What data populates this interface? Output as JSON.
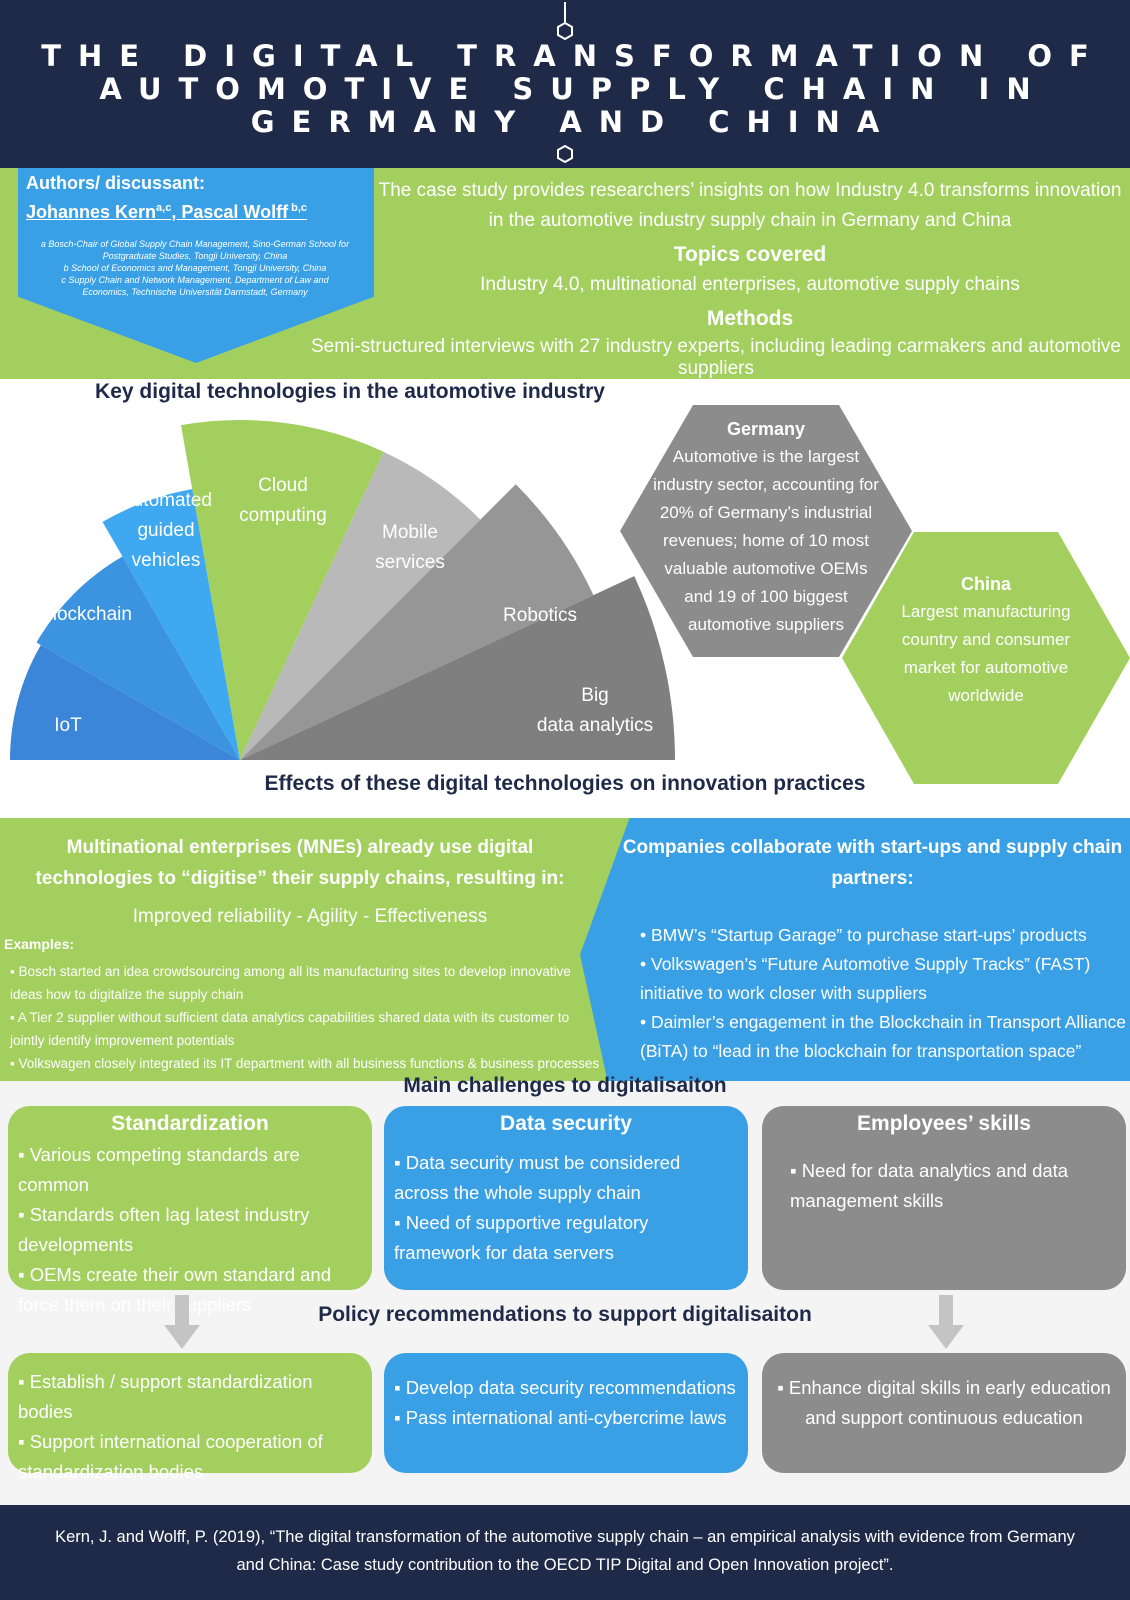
{
  "header": {
    "title": "THE DIGITAL TRANSFORMATION OF AUTOMOTIVE SUPPLY CHAIN IN GERMANY AND CHINA"
  },
  "intro": {
    "authors_label": "Authors/ discussant:",
    "author_1": "Johannes Kern",
    "author_1_sup": "a,c",
    "author_sep": ", ",
    "author_2": "Pascal Wolff",
    "author_2_sup": " b,c",
    "affiliation_a": "a Bosch-Chair of Global Supply Chain Management, Sino-German School for Postgraduate Studies, Tongji University, China",
    "affiliation_b": "b School of Economics and Management, Tongji University, China",
    "affiliation_c": "c Supply Chain and Network Management, Department of Law and Economics, Technische Universität Darmstadt, Germany",
    "summary": "The case study provides researchers’ insights on how Industry 4.0 transforms innovation in the automotive industry supply chain in Germany and China",
    "topics_heading": "Topics covered",
    "topics_text": "Industry 4.0, multinational enterprises, automotive supply chains",
    "methods_heading": "Methods",
    "methods_text": "Semi-structured interviews with 27 industry experts, including leading carmakers and automotive suppliers"
  },
  "technologies": {
    "heading": "Key digital technologies in the automotive industry",
    "segments": [
      "IoT",
      "Blockchain",
      "Automated guided vehicles",
      "Cloud computing",
      "Mobile services",
      "Robotics",
      "Big data analytics"
    ],
    "colors": [
      "#3b86d8",
      "#3c94e0",
      "#3ea8f0",
      "#a3cf5f",
      "#b9b9b9",
      "#969696",
      "#7f7f7f"
    ]
  },
  "germany": {
    "title": "Germany",
    "text": "Automotive is the largest industry sector, accounting for 20% of Germany’s industrial revenues; home of 10 most valuable automotive OEMs and 19 of 100 biggest automotive suppliers"
  },
  "china": {
    "title": "China",
    "text": "Largest manufacturing country and consumer market for automotive worldwide"
  },
  "effects": {
    "heading": "Effects of these digital technologies on innovation practices",
    "mne_heading": "Multinational enterprises (MNEs) already use digital technologies to “digitise” their supply chains, resulting in:",
    "mne_results": "Improved reliability  - Agility  - Effectiveness",
    "examples_label": "Examples:",
    "examples": [
      "▪ Bosch started an idea crowdsourcing among all its manufacturing sites to develop innovative ideas how to digitalize the supply chain",
      "▪ A Tier 2 supplier without sufficient data analytics capabilities shared data with its customer to jointly identify improvement potentials",
      "▪ Volkswagen closely integrated its IT department with all business functions & business processes"
    ],
    "collab_heading": "Companies collaborate with start-ups and supply chain partners:",
    "collab_items": [
      "•  BMW’s “Startup Garage” to purchase start-ups’ products",
      "•  Volkswagen’s “Future Automotive Supply Tracks” (FAST) initiative to work closer with suppliers",
      "•  Daimler’s engagement in the Blockchain in Transport Alliance (BiTA) to “lead in the blockchain for transportation space”"
    ]
  },
  "challenges": {
    "heading": "Main challenges to digitalisaiton",
    "standardization": {
      "title": "Standardization",
      "items": [
        "▪ Various competing standards are common",
        "▪ Standards often lag latest industry developments",
        "▪ OEMs create their own standard and force them on their suppliers"
      ]
    },
    "data_security": {
      "title": "Data security",
      "items": [
        "▪ Data security must be considered across the whole supply chain",
        "▪ Need of supportive regulatory framework for data servers"
      ]
    },
    "skills": {
      "title": "Employees’ skills",
      "items": [
        "▪ Need for data analytics and data management skills"
      ]
    }
  },
  "policy": {
    "heading": "Policy recommendations to support digitalisaiton",
    "standardization": [
      "▪ Establish / support standardization bodies",
      "▪ Support international cooperation of standardization bodies"
    ],
    "data_security": [
      "▪ Develop data security recommendations",
      "▪ Pass international anti-cybercrime laws"
    ],
    "skills": [
      "▪ Enhance digital skills in early education and support continuous education"
    ]
  },
  "footer": {
    "citation": "Kern, J. and Wolff, P. (2019), “The digital transformation of the automotive supply chain – an empirical analysis with evidence from Germany and China: Case study contribution to the OECD TIP Digital and Open Innovation project”."
  },
  "colors": {
    "navy": "#1f2a48",
    "green": "#a3cf5f",
    "blue": "#3aa0e6",
    "grey": "#8c8c8c"
  }
}
